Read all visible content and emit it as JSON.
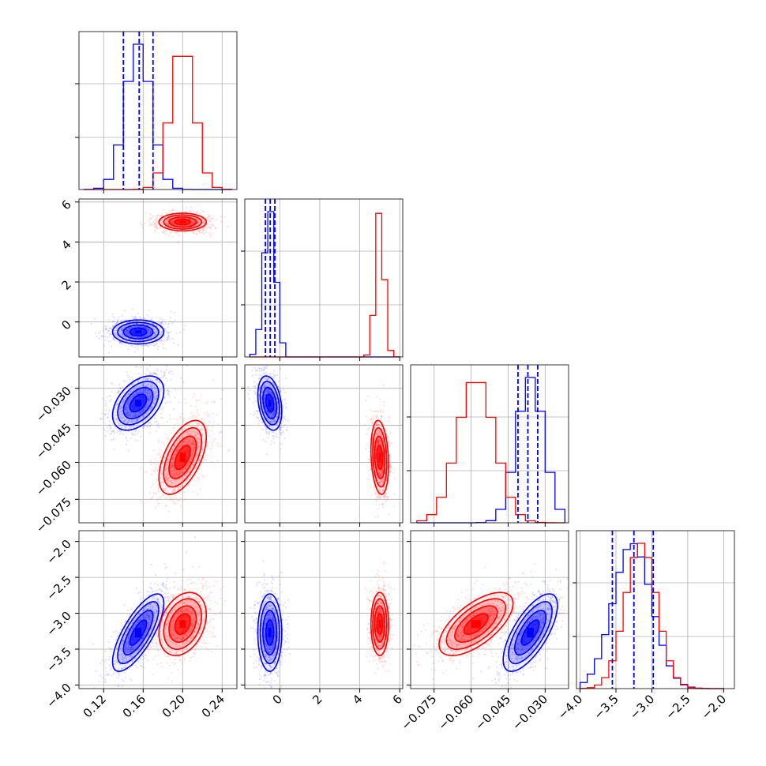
{
  "chart_data": {
    "type": "corner",
    "colors": {
      "series_a": "#0000ff",
      "series_b": "#ff0000",
      "grid": "#b0b0b0"
    },
    "params": [
      {
        "ticks": [
          0.12,
          0.16,
          0.2,
          0.24
        ],
        "tick_labels": [
          "0.12",
          "0.16",
          "0.20",
          "0.24"
        ],
        "range": [
          0.095,
          0.255
        ]
      },
      {
        "ticks": [
          0,
          2,
          4,
          6
        ],
        "tick_labels": [
          "0",
          "2",
          "4",
          "6"
        ],
        "range": [
          -1.75,
          6.15
        ]
      },
      {
        "ticks": [
          -0.075,
          -0.06,
          -0.045,
          -0.03
        ],
        "tick_labels": [
          "−0.075",
          "−0.060",
          "−0.045",
          "−0.030"
        ],
        "range": [
          -0.0845,
          -0.0205
        ]
      },
      {
        "ticks": [
          -4.0,
          -3.5,
          -3.0,
          -2.5,
          -2.0
        ],
        "tick_labels": [
          "−4.0",
          "−3.5",
          "−3.0",
          "−2.5",
          "−2.0"
        ],
        "range": [
          -4.05,
          -1.85
        ]
      }
    ],
    "y_ticks_rows": {
      "1": {
        "ticks": [
          0,
          2,
          4,
          6
        ],
        "labels": [
          "0",
          "2",
          "4",
          "6"
        ]
      },
      "2": {
        "ticks": [
          -0.075,
          -0.06,
          -0.045,
          -0.03
        ],
        "labels": [
          "−0.075",
          "−0.060",
          "−0.045",
          "−0.030"
        ]
      },
      "3": {
        "ticks": [
          -4.0,
          -3.5,
          -3.0,
          -2.5,
          -2.0
        ],
        "labels": [
          "−4.0",
          "−3.5",
          "−3.0",
          "−2.5",
          "−2.0"
        ]
      }
    },
    "series": [
      {
        "key": "blue",
        "color": "#0000ff",
        "mean": [
          0.155,
          -0.5,
          -0.036,
          -3.27
        ],
        "sd": [
          0.013,
          0.3,
          0.0055,
          0.27
        ],
        "quantile_lines": [
          [
            0.14,
            0.156,
            0.17
          ],
          [
            -0.72,
            -0.48,
            -0.25
          ],
          [
            -0.041,
            -0.037,
            -0.033
          ],
          [
            -3.55,
            -3.25,
            -2.98
          ]
        ]
      },
      {
        "key": "red",
        "color": "#ff0000",
        "mean": [
          0.2,
          5.0,
          -0.058,
          -3.15
        ],
        "sd": [
          0.012,
          0.22,
          0.0075,
          0.22
        ]
      }
    ],
    "correlations": {
      "blue": {
        "1_0": 0.0,
        "2_0": 0.45,
        "2_1": -0.3,
        "3_0": 0.75,
        "3_1": 0.0,
        "3_2": 0.7
      },
      "red": {
        "1_0": 0.0,
        "2_0": 0.55,
        "2_1": -0.2,
        "3_0": 0.3,
        "3_1": 0.0,
        "3_2": 0.65
      }
    },
    "diag_bins": [
      [
        0.1,
        0.11,
        0.12,
        0.13,
        0.14,
        0.15,
        0.16,
        0.17,
        0.18,
        0.19,
        0.2,
        0.21,
        0.22,
        0.23,
        0.24,
        0.25
      ],
      [
        -1.5,
        -1.2,
        -0.9,
        -0.6,
        -0.3,
        0.0,
        0.3,
        4.2,
        4.5,
        4.8,
        5.1,
        5.4,
        5.7,
        6.0
      ],
      [
        -0.082,
        -0.078,
        -0.074,
        -0.07,
        -0.066,
        -0.062,
        -0.058,
        -0.054,
        -0.05,
        -0.046,
        -0.042,
        -0.038,
        -0.034,
        -0.03,
        -0.026,
        -0.022
      ],
      [
        -4.0,
        -3.9,
        -3.8,
        -3.7,
        -3.6,
        -3.5,
        -3.4,
        -3.3,
        -3.2,
        -3.1,
        -3.0,
        -2.9,
        -2.8,
        -2.7,
        -2.6,
        -2.5,
        -2.4,
        -2.3,
        -2.2,
        -2.1,
        -2.0
      ]
    ]
  }
}
